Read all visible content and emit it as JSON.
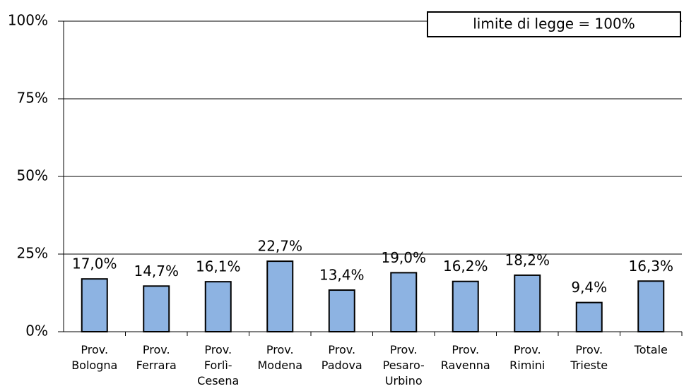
{
  "chart_data": {
    "type": "bar",
    "categories": [
      "Prov.\nBologna",
      "Prov.\nFerrara",
      "Prov.\nForlì-\nCesena",
      "Prov.\nModena",
      "Prov.\nPadova",
      "Prov.\nPesaro-\nUrbino",
      "Prov.\nRavenna",
      "Prov.\nRimini",
      "Prov.\nTrieste",
      "Totale"
    ],
    "values": [
      17.0,
      14.7,
      16.1,
      22.7,
      13.4,
      19.0,
      16.2,
      18.2,
      9.4,
      16.3
    ],
    "value_labels": [
      "17,0%",
      "14,7%",
      "16,1%",
      "22,7%",
      "13,4%",
      "19,0%",
      "16,2%",
      "18,2%",
      "9,4%",
      "16,3%"
    ],
    "color": "#8db3e2",
    "ylim": [
      0,
      100
    ],
    "yticks": [
      {
        "value": 0,
        "label": "0%"
      },
      {
        "value": 25,
        "label": "25%"
      },
      {
        "value": 50,
        "label": "50%"
      },
      {
        "value": 75,
        "label": "75%"
      },
      {
        "value": 100,
        "label": "100%"
      }
    ],
    "grid": true,
    "annotation": "limite di legge = 100%"
  }
}
